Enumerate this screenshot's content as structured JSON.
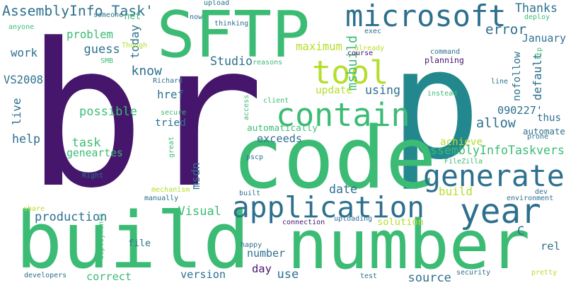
{
  "palette": {
    "dark_purple": "#440154",
    "indigo": "#3b528b",
    "teal": "#21918c",
    "green": "#5ec962",
    "lime": "#c8e020",
    "background": "#ffffff"
  },
  "words": [
    {
      "text": "br",
      "color": "#45166b"
    },
    {
      "text": "p",
      "color": "#23888e"
    },
    {
      "text": "number",
      "color": "#3cbb75"
    },
    {
      "text": "build",
      "color": "#3cbb75"
    },
    {
      "text": "code",
      "color": "#3cbb75"
    },
    {
      "text": "SFTP",
      "color": "#3cbb75"
    },
    {
      "text": "microsoft",
      "color": "#2d708e"
    },
    {
      "text": "application",
      "color": "#2d708e"
    },
    {
      "text": "generate",
      "color": "#2d708e"
    },
    {
      "text": "contain",
      "color": "#3cbb75"
    },
    {
      "text": "year",
      "color": "#2d708e"
    },
    {
      "text": "tool",
      "color": "#b5de2b"
    },
    {
      "text": "AssemblyInfo Task'",
      "color": "#2d708e"
    },
    {
      "text": "Thanks",
      "color": "#2d708e"
    },
    {
      "text": "error",
      "color": "#2d708e"
    },
    {
      "text": "January",
      "color": "#2d708e"
    },
    {
      "text": "msbuild",
      "color": "#3cbb75"
    },
    {
      "text": "maximum",
      "color": "#b5de2b"
    },
    {
      "text": "know",
      "color": "#2d708e"
    },
    {
      "text": "Studio",
      "color": "#2d708e"
    },
    {
      "text": "href",
      "color": "#2d708e"
    },
    {
      "text": "today",
      "color": "#2d708e"
    },
    {
      "text": "problem",
      "color": "#3cbb75"
    },
    {
      "text": "guess",
      "color": "#2d708e"
    },
    {
      "text": "work",
      "color": "#2d708e"
    },
    {
      "text": "VS2008",
      "color": "#2d708e"
    },
    {
      "text": "live",
      "color": "#2d708e"
    },
    {
      "text": "help",
      "color": "#2d708e"
    },
    {
      "text": "possible",
      "color": "#3cbb75"
    },
    {
      "text": "task",
      "color": "#3cbb75"
    },
    {
      "text": "geneartes",
      "color": "#3cbb75"
    },
    {
      "text": "tried",
      "color": "#2d708e"
    },
    {
      "text": "automatically",
      "color": "#3cbb75"
    },
    {
      "text": "exceeds",
      "color": "#2d708e"
    },
    {
      "text": "allow",
      "color": "#2d708e"
    },
    {
      "text": "090227'",
      "color": "#2d708e"
    },
    {
      "text": "thus",
      "color": "#2d708e"
    },
    {
      "text": "automate",
      "color": "#2d708e"
    },
    {
      "text": "AssemblyInfoTaskvers",
      "color": "#3cbb75"
    },
    {
      "text": "achieve",
      "color": "#b5de2b"
    },
    {
      "text": "update",
      "color": "#b5de2b"
    },
    {
      "text": "using",
      "color": "#2d708e"
    },
    {
      "text": "default",
      "color": "#2d708e"
    },
    {
      "text": "nofollow",
      "color": "#2d708e"
    },
    {
      "text": "date",
      "color": "#2d708e"
    },
    {
      "text": "build",
      "color": "#b5de2b"
    },
    {
      "text": "production",
      "color": "#2d708e"
    },
    {
      "text": "Visual",
      "color": "#3cbb75"
    },
    {
      "text": "solution",
      "color": "#b5de2b"
    },
    {
      "text": "file",
      "color": "#2d708e"
    },
    {
      "text": "number",
      "color": "#2d708e"
    },
    {
      "text": "day",
      "color": "#45166b"
    },
    {
      "text": "use",
      "color": "#2d708e"
    },
    {
      "text": "version",
      "color": "#2d708e"
    },
    {
      "text": "correct",
      "color": "#3cbb75"
    },
    {
      "text": "source",
      "color": "#2d708e"
    },
    {
      "text": "rel",
      "color": "#2d708e"
    },
    {
      "text": "C",
      "color": "#2d708e"
    },
    {
      "text": "msdn",
      "color": "#2d708e"
    },
    {
      "text": "net",
      "color": "#3cbb75"
    },
    {
      "text": "someone",
      "color": "#2d708e"
    },
    {
      "text": "anyone",
      "color": "#3cbb75"
    },
    {
      "text": "upload",
      "color": "#2d708e"
    },
    {
      "text": "now",
      "color": "#2d708e"
    },
    {
      "text": "thinking",
      "color": "#2d708e"
    },
    {
      "text": "exec",
      "color": "#2d708e"
    },
    {
      "text": "already",
      "color": "#b5de2b"
    },
    {
      "text": "course",
      "color": "#45166b"
    },
    {
      "text": "reasons",
      "color": "#3cbb75"
    },
    {
      "text": "Though",
      "color": "#b5de2b"
    },
    {
      "text": "SMB",
      "color": "#3cbb75"
    },
    {
      "text": "Richard",
      "color": "#2d708e"
    },
    {
      "text": "deploy",
      "color": "#3cbb75"
    },
    {
      "text": "command",
      "color": "#2d708e"
    },
    {
      "text": "planning",
      "color": "#45166b"
    },
    {
      "text": "ftp",
      "color": "#3cbb75"
    },
    {
      "text": "line",
      "color": "#2d708e"
    },
    {
      "text": "instead",
      "color": "#3cbb75"
    },
    {
      "text": "access",
      "color": "#3cbb75"
    },
    {
      "text": "client",
      "color": "#3cbb75"
    },
    {
      "text": "secure",
      "color": "#3cbb75"
    },
    {
      "text": "great",
      "color": "#3cbb75"
    },
    {
      "text": "prone",
      "color": "#2d708e"
    },
    {
      "text": "pscp",
      "color": "#2d708e"
    },
    {
      "text": "FileZilla",
      "color": "#3cbb75"
    },
    {
      "text": "Right",
      "color": "#2d708e"
    },
    {
      "text": "dev",
      "color": "#2d708e"
    },
    {
      "text": "environment",
      "color": "#2d708e"
    },
    {
      "text": "mechanism",
      "color": "#b5de2b"
    },
    {
      "text": "manually",
      "color": "#2d708e"
    },
    {
      "text": "built",
      "color": "#2d708e"
    },
    {
      "text": "share",
      "color": "#b5de2b"
    },
    {
      "text": "deployments",
      "color": "#3cbb75"
    },
    {
      "text": "happy",
      "color": "#2d708e"
    },
    {
      "text": "connection",
      "color": "#45166b"
    },
    {
      "text": "uploading",
      "color": "#2d708e"
    },
    {
      "text": "developers",
      "color": "#2d708e"
    },
    {
      "text": "test",
      "color": "#2d708e"
    },
    {
      "text": "security",
      "color": "#2d708e"
    },
    {
      "text": "pretty",
      "color": "#b5de2b"
    }
  ]
}
